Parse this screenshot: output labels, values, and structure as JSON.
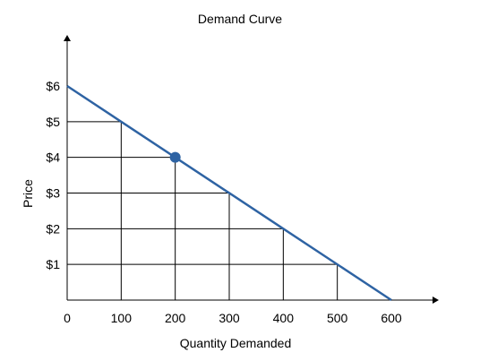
{
  "chart_data": {
    "type": "line",
    "title": "Demand Curve",
    "xlabel": "Quantity Demanded",
    "ylabel": "Price",
    "x_ticks": [
      0,
      100,
      200,
      300,
      400,
      500,
      600
    ],
    "x_tick_labels": [
      "0",
      "100",
      "200",
      "300",
      "400",
      "500",
      "600"
    ],
    "y_ticks": [
      1,
      2,
      3,
      4,
      5,
      6
    ],
    "y_tick_labels": [
      "$1",
      "$2",
      "$3",
      "$4",
      "$5",
      "$6"
    ],
    "xlim": [
      0,
      600
    ],
    "ylim": [
      0,
      6
    ],
    "series": [
      {
        "values": [
          [
            0,
            6
          ],
          [
            600,
            0
          ]
        ],
        "color": "#2e63a3"
      }
    ],
    "highlight_point": {
      "x": 200,
      "y": 4,
      "color": "#2e63a3"
    },
    "guide_lines": [
      [
        100,
        5
      ],
      [
        200,
        4
      ],
      [
        300,
        3
      ],
      [
        400,
        2
      ],
      [
        500,
        1
      ]
    ],
    "grid": false,
    "legend": "none"
  }
}
